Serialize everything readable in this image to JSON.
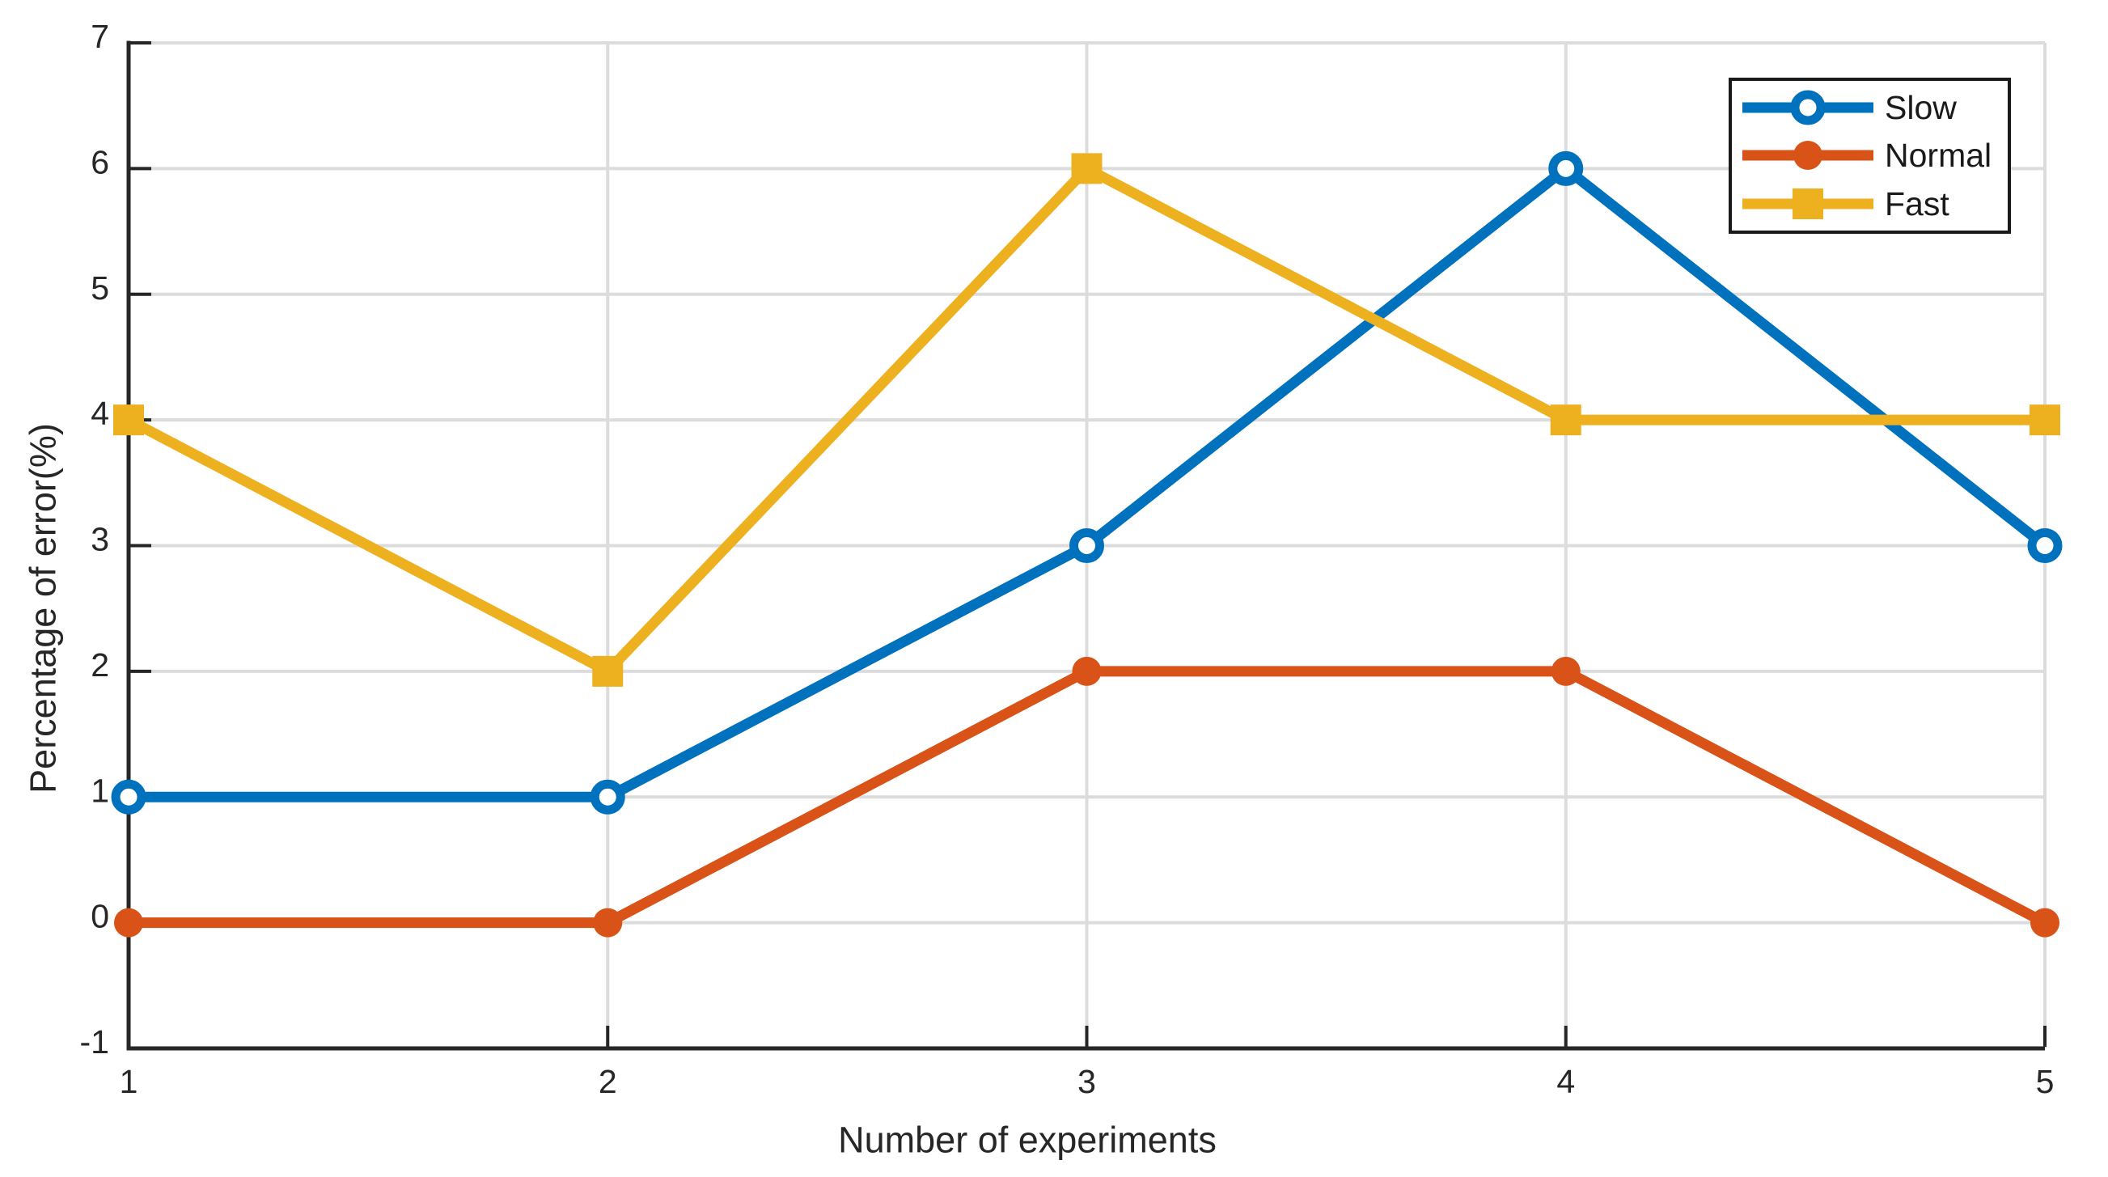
{
  "chart_data": {
    "type": "line",
    "title": "",
    "xlabel": "Number of experiments",
    "ylabel": "Percentage of error(%)",
    "x": [
      1,
      2,
      3,
      4,
      5
    ],
    "xticks": [
      1,
      2,
      3,
      4,
      5
    ],
    "yticks": [
      -1,
      0,
      1,
      2,
      3,
      4,
      5,
      6,
      7
    ],
    "xlim": [
      1,
      5
    ],
    "ylim": [
      -1,
      7
    ],
    "grid": true,
    "legend_position": "top-right",
    "series": [
      {
        "name": "Slow",
        "values": [
          1,
          1,
          3,
          6,
          3
        ],
        "color": "#0072BD",
        "marker": "open-circle"
      },
      {
        "name": "Normal",
        "values": [
          0,
          0,
          2,
          2,
          0
        ],
        "color": "#D95319",
        "marker": "filled-circle"
      },
      {
        "name": "Fast",
        "values": [
          4,
          2,
          6,
          4,
          4
        ],
        "color": "#EDB120",
        "marker": "filled-square"
      }
    ],
    "colors": {
      "axis": "#262626",
      "grid": "#DCDCDC",
      "background": "#FFFFFF",
      "legend_border": "#1A1A1A"
    }
  }
}
